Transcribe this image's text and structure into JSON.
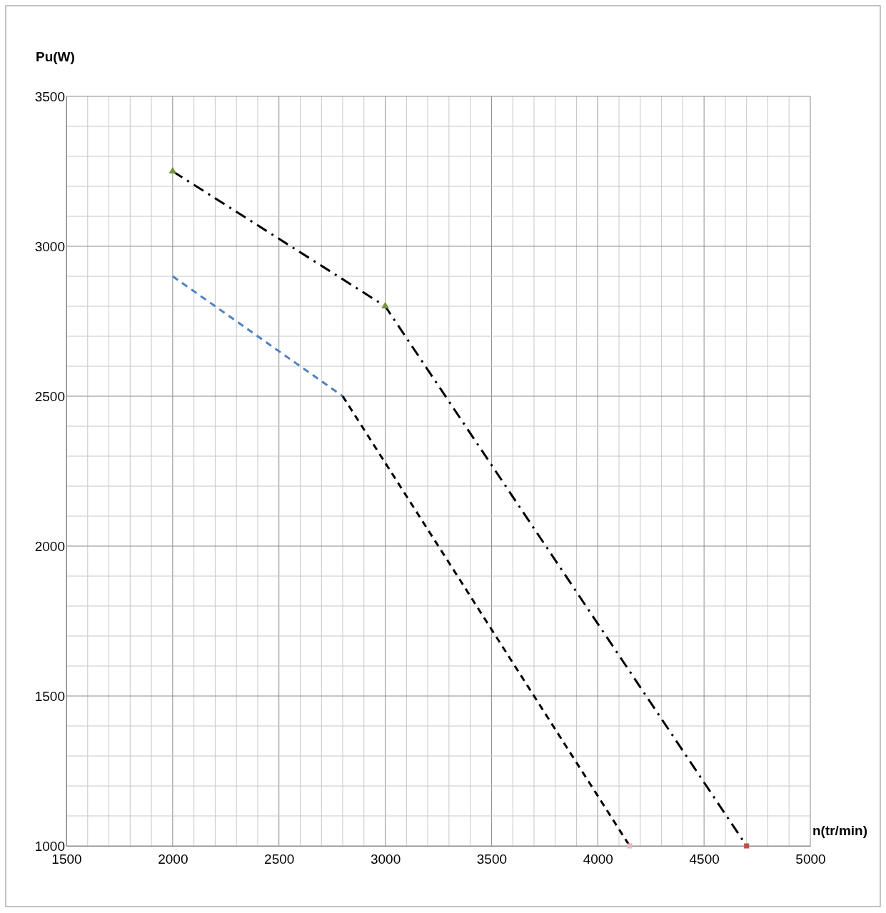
{
  "chart_data": {
    "type": "line",
    "xlabel": "n(tr/min)",
    "ylabel": "Pu(W)",
    "xlim": [
      1500,
      5000
    ],
    "ylim": [
      1000,
      3500
    ],
    "xticks": [
      1500,
      {
        "value": 1600,
        "label": null
      },
      {
        "value": 1700,
        "label": null
      },
      {
        "value": 1800,
        "label": null
      },
      {
        "value": 1900,
        "label": null
      },
      2000,
      {
        "value": 2100,
        "label": null
      },
      {
        "value": 2200,
        "label": null
      },
      {
        "value": 2300,
        "label": null
      },
      {
        "value": 2400,
        "label": null
      },
      2500,
      {
        "value": 2600,
        "label": null
      },
      {
        "value": 2700,
        "label": null
      },
      {
        "value": 2800,
        "label": null
      },
      {
        "value": 2900,
        "label": null
      },
      3000,
      {
        "value": 3100,
        "label": null
      },
      {
        "value": 3200,
        "label": null
      },
      {
        "value": 3300,
        "label": null
      },
      {
        "value": 3400,
        "label": null
      },
      3500,
      {
        "value": 3600,
        "label": null
      },
      {
        "value": 3700,
        "label": null
      },
      {
        "value": 3800,
        "label": null
      },
      {
        "value": 3900,
        "label": null
      },
      4000,
      {
        "value": 4100,
        "label": null
      },
      {
        "value": 4200,
        "label": null
      },
      {
        "value": 4300,
        "label": null
      },
      {
        "value": 4400,
        "label": null
      },
      4500,
      {
        "value": 4600,
        "label": null
      },
      {
        "value": 4700,
        "label": null
      },
      {
        "value": 4800,
        "label": null
      },
      {
        "value": 4900,
        "label": null
      },
      5000
    ],
    "yticks": [
      1000,
      {
        "value": 1100,
        "label": null
      },
      {
        "value": 1200,
        "label": null
      },
      {
        "value": 1300,
        "label": null
      },
      {
        "value": 1400,
        "label": null
      },
      1500,
      {
        "value": 1600,
        "label": null
      },
      {
        "value": 1700,
        "label": null
      },
      {
        "value": 1800,
        "label": null
      },
      {
        "value": 1900,
        "label": null
      },
      2000,
      {
        "value": 2100,
        "label": null
      },
      {
        "value": 2200,
        "label": null
      },
      {
        "value": 2300,
        "label": null
      },
      {
        "value": 2400,
        "label": null
      },
      2500,
      {
        "value": 2600,
        "label": null
      },
      {
        "value": 2700,
        "label": null
      },
      {
        "value": 2800,
        "label": null
      },
      {
        "value": 2900,
        "label": null
      },
      3000,
      {
        "value": 3100,
        "label": null
      },
      {
        "value": 3200,
        "label": null
      },
      {
        "value": 3300,
        "label": null
      },
      {
        "value": 3400,
        "label": null
      },
      3500
    ],
    "grid": true,
    "series": [
      {
        "type": "line",
        "x": [
          2000,
          3000,
          4700
        ],
        "values": [
          3250,
          2800,
          1000
        ],
        "color": "#000000",
        "line_style": "dashdot",
        "marker": "none"
      },
      {
        "type": "line",
        "x": [
          2000,
          2800
        ],
        "values": [
          2900,
          2500
        ],
        "color": "#4f81bd",
        "line_style": "dashed",
        "marker": "none"
      },
      {
        "type": "line",
        "x": [
          2800,
          4150
        ],
        "values": [
          2500,
          1000
        ],
        "color": "#000000",
        "line_style": "dashed",
        "marker": "none"
      },
      {
        "type": "scatter",
        "x": [
          2000,
          3000
        ],
        "values": [
          3250,
          2800
        ],
        "color": "#77933c",
        "marker": "triangle"
      },
      {
        "type": "scatter",
        "x": [
          4700
        ],
        "values": [
          1000
        ],
        "color": "#c0504d",
        "marker": "square"
      },
      {
        "type": "scatter",
        "x": [
          4150
        ],
        "values": [
          1000
        ],
        "color": "#e6b9b8",
        "marker": "square"
      }
    ]
  }
}
